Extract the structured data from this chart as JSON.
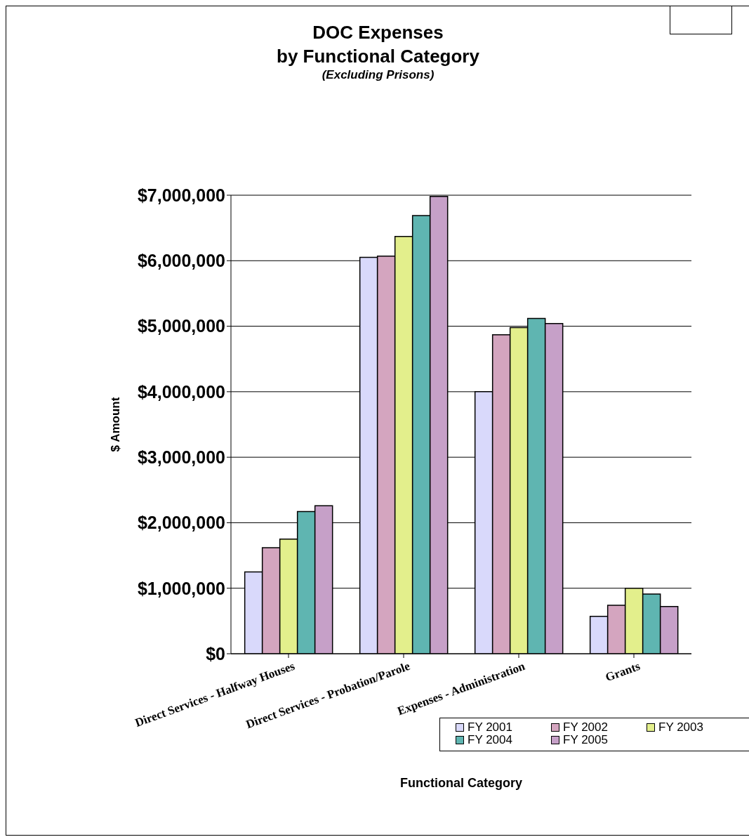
{
  "chart_data": {
    "type": "bar",
    "title": "DOC Expenses\nby Functional Category",
    "subtitle": "(Excluding Prisons)",
    "xlabel": "Functional Category",
    "ylabel": "$ Amount",
    "categories": [
      "Direct Services - Halfway Houses",
      "Direct Services - Probation/Parole",
      "Expenses - Administration",
      "Grants"
    ],
    "series": [
      {
        "name": "FY 2001",
        "color": "#d9d9fb",
        "values": [
          1250000,
          6050000,
          4000000,
          570000
        ]
      },
      {
        "name": "FY 2002",
        "color": "#d4a5bf",
        "values": [
          1620000,
          6070000,
          4870000,
          740000
        ]
      },
      {
        "name": "FY 2003",
        "color": "#e3ef8c",
        "values": [
          1750000,
          6370000,
          4980000,
          1000000
        ]
      },
      {
        "name": "FY 2004",
        "color": "#5fb5b1",
        "values": [
          2170000,
          6690000,
          5120000,
          910000
        ]
      },
      {
        "name": "FY 2005",
        "color": "#c6a0c8",
        "values": [
          2260000,
          6980000,
          5040000,
          720000
        ]
      }
    ],
    "ylim": [
      0,
      7000000
    ],
    "yticks": [
      {
        "value": 0,
        "label": "$0"
      },
      {
        "value": 1000000,
        "label": "$1,000,000"
      },
      {
        "value": 2000000,
        "label": "$2,000,000"
      },
      {
        "value": 3000000,
        "label": "$3,000,000"
      },
      {
        "value": 4000000,
        "label": "$4,000,000"
      },
      {
        "value": 5000000,
        "label": "$5,000,000"
      },
      {
        "value": 6000000,
        "label": "$6,000,000"
      },
      {
        "value": 7000000,
        "label": "$7,000,000"
      }
    ],
    "grid": "y",
    "legend": "bottom right"
  }
}
